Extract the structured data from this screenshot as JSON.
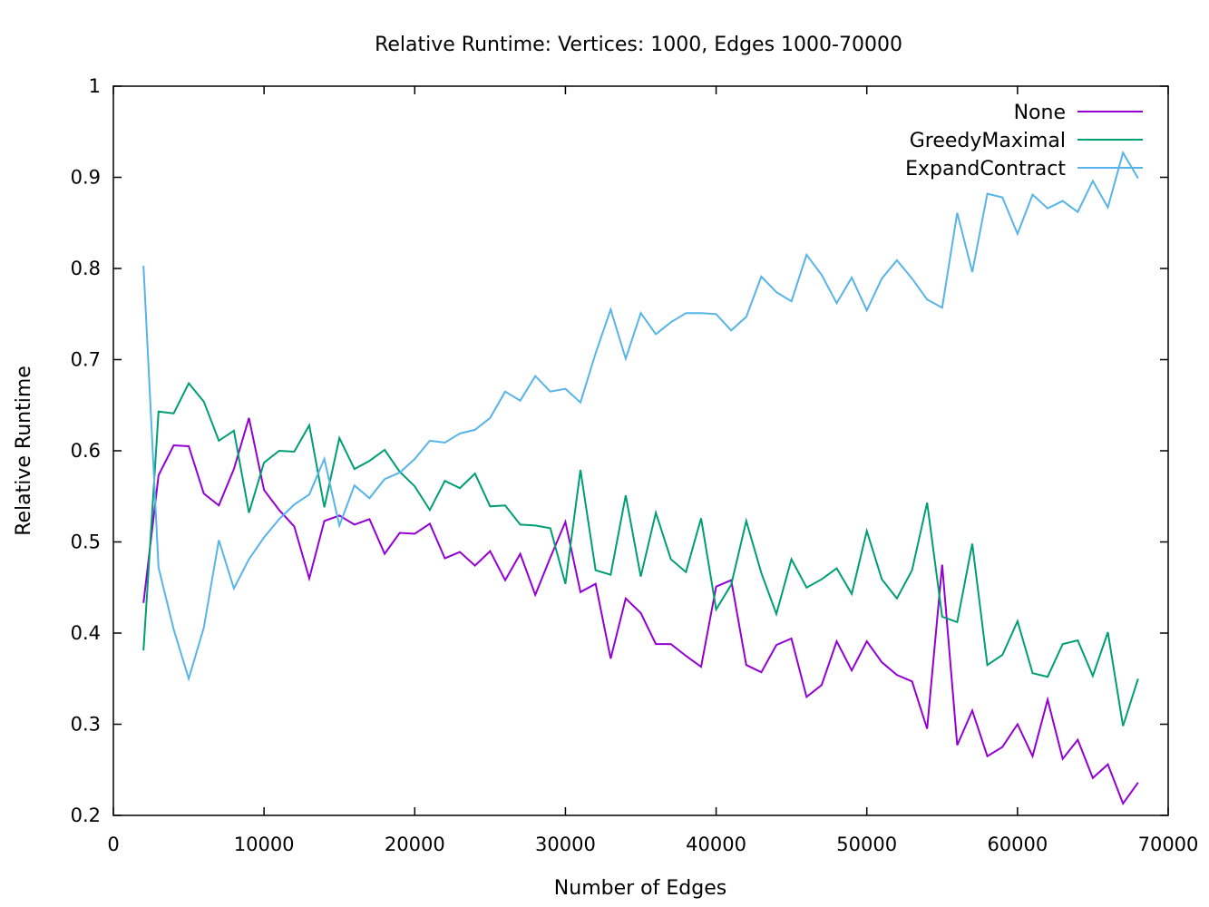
{
  "chart_data": {
    "type": "line",
    "title": "Relative Runtime: Vertices: 1000, Edges 1000-70000",
    "xlabel": "Number of Edges",
    "ylabel": "Relative Runtime",
    "xlim": [
      0,
      70000
    ],
    "ylim": [
      0.2,
      1.0
    ],
    "xticks": [
      0,
      10000,
      20000,
      30000,
      40000,
      50000,
      60000,
      70000
    ],
    "yticks": [
      0.2,
      0.3,
      0.4,
      0.5,
      0.6,
      0.7,
      0.8,
      0.9,
      1.0
    ],
    "xtick_labels": [
      "0",
      "10000",
      "20000",
      "30000",
      "40000",
      "50000",
      "60000",
      "70000"
    ],
    "ytick_labels": [
      "0.2",
      "0.3",
      "0.4",
      "0.5",
      "0.6",
      "0.7",
      "0.8",
      "0.9",
      "1"
    ],
    "grid": false,
    "legend_position": "top-right",
    "x": [
      2000,
      3000,
      4000,
      5000,
      6000,
      7000,
      8000,
      9000,
      10000,
      11000,
      12000,
      13000,
      14000,
      15000,
      16000,
      17000,
      18000,
      19000,
      20000,
      21000,
      22000,
      23000,
      24000,
      25000,
      26000,
      27000,
      28000,
      29000,
      30000,
      31000,
      32000,
      33000,
      34000,
      35000,
      36000,
      37000,
      38000,
      39000,
      40000,
      41000,
      42000,
      43000,
      44000,
      45000,
      46000,
      47000,
      48000,
      49000,
      50000,
      51000,
      52000,
      53000,
      54000,
      55000,
      56000,
      57000,
      58000,
      59000,
      60000,
      61000,
      62000,
      63000,
      64000,
      65000,
      66000,
      67000,
      68000
    ],
    "series": [
      {
        "name": "None",
        "color": "#9400d3",
        "values": [
          0.433,
          0.573,
          0.606,
          0.605,
          0.553,
          0.54,
          0.58,
          0.636,
          0.557,
          0.535,
          0.517,
          0.46,
          0.523,
          0.529,
          0.519,
          0.525,
          0.487,
          0.51,
          0.509,
          0.52,
          0.482,
          0.489,
          0.474,
          0.49,
          0.458,
          0.487,
          0.442,
          0.483,
          0.522,
          0.445,
          0.454,
          0.372,
          0.438,
          0.422,
          0.388,
          0.388,
          0.375,
          0.363,
          0.451,
          0.458,
          0.365,
          0.357,
          0.387,
          0.394,
          0.33,
          0.343,
          0.391,
          0.359,
          0.391,
          0.368,
          0.354,
          0.347,
          0.295,
          0.475,
          0.277,
          0.315,
          0.265,
          0.275,
          0.3,
          0.265,
          0.327,
          0.262,
          0.283,
          0.241,
          0.256,
          0.213,
          0.236
        ]
      },
      {
        "name": "GreedyMaximal",
        "color": "#009e73",
        "values": [
          0.381,
          0.643,
          0.641,
          0.674,
          0.654,
          0.611,
          0.622,
          0.532,
          0.587,
          0.6,
          0.599,
          0.628,
          0.538,
          0.614,
          0.58,
          0.589,
          0.601,
          0.577,
          0.561,
          0.535,
          0.567,
          0.559,
          0.575,
          0.539,
          0.54,
          0.519,
          0.518,
          0.515,
          0.454,
          0.579,
          0.469,
          0.464,
          0.551,
          0.462,
          0.532,
          0.481,
          0.467,
          0.526,
          0.426,
          0.453,
          0.523,
          0.466,
          0.421,
          0.481,
          0.45,
          0.459,
          0.471,
          0.443,
          0.512,
          0.459,
          0.438,
          0.469,
          0.543,
          0.418,
          0.412,
          0.498,
          0.365,
          0.376,
          0.413,
          0.356,
          0.352,
          0.388,
          0.392,
          0.353,
          0.401,
          0.298,
          0.35
        ]
      },
      {
        "name": "ExpandContract",
        "color": "#56b4e9",
        "values": [
          0.803,
          0.472,
          0.404,
          0.35,
          0.406,
          0.502,
          0.449,
          0.481,
          0.505,
          0.525,
          0.541,
          0.552,
          0.591,
          0.518,
          0.562,
          0.548,
          0.569,
          0.576,
          0.591,
          0.611,
          0.609,
          0.619,
          0.623,
          0.636,
          0.665,
          0.655,
          0.682,
          0.665,
          0.668,
          0.653,
          0.707,
          0.755,
          0.701,
          0.751,
          0.728,
          0.741,
          0.751,
          0.751,
          0.75,
          0.732,
          0.747,
          0.791,
          0.774,
          0.764,
          0.815,
          0.793,
          0.762,
          0.79,
          0.754,
          0.789,
          0.809,
          0.789,
          0.766,
          0.757,
          0.861,
          0.796,
          0.882,
          0.878,
          0.838,
          0.881,
          0.866,
          0.874,
          0.862,
          0.896,
          0.867,
          0.927,
          0.899
        ]
      }
    ]
  }
}
